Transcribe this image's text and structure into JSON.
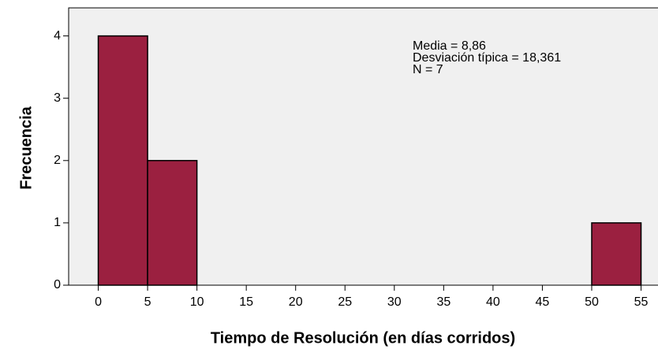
{
  "chart_data": {
    "type": "histogram",
    "xlabel": "Tiempo de Resolución (en días corridos)",
    "ylabel": "Frecuencia",
    "bins": [
      0,
      5,
      10,
      15,
      20,
      25,
      30,
      35,
      40,
      45,
      50,
      55
    ],
    "counts": [
      4,
      2,
      0,
      0,
      0,
      0,
      0,
      0,
      0,
      0,
      1
    ],
    "color": "#9b2040",
    "xlim": [
      -3,
      57
    ],
    "ylim": [
      0,
      4.45
    ],
    "xticks": [
      0,
      5,
      10,
      15,
      20,
      25,
      30,
      35,
      40,
      45,
      50,
      55
    ],
    "yticks": [
      0,
      1,
      2,
      3,
      4
    ],
    "annotation": [
      "Media = 8,86",
      "Desviación típica = 18,361",
      "N = 7"
    ]
  }
}
